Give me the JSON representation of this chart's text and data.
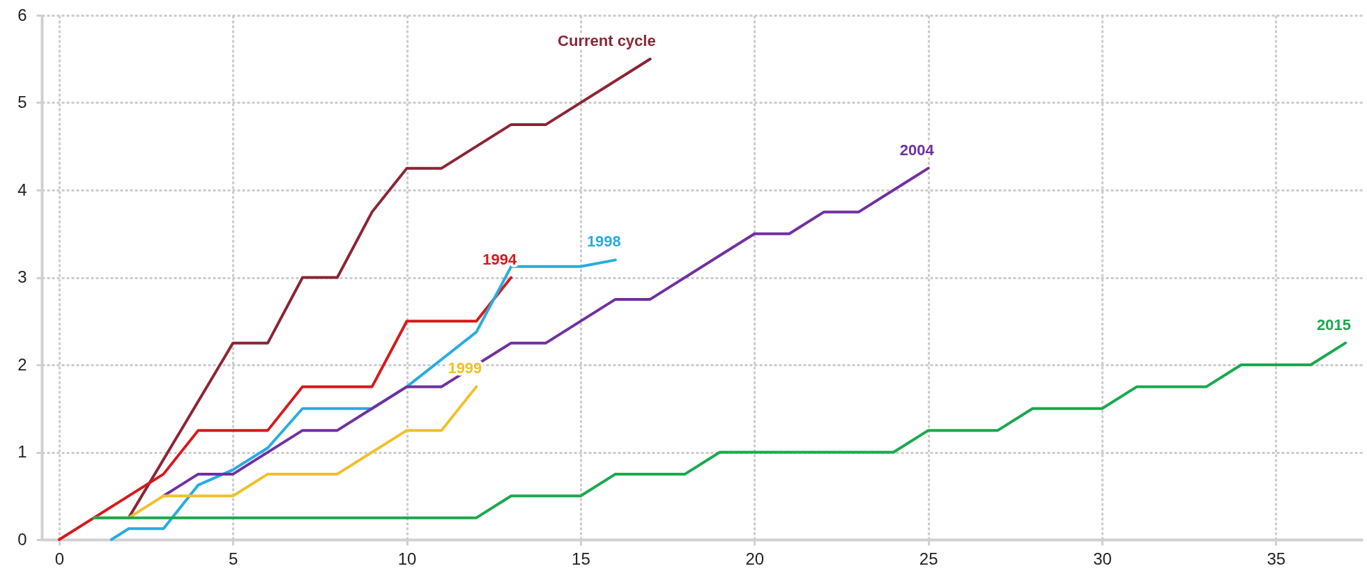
{
  "chart_data": {
    "type": "line",
    "xlim": [
      -0.5,
      37.5
    ],
    "xticks": [
      0,
      5,
      10,
      15,
      20,
      25,
      30,
      35
    ],
    "ylim": [
      0,
      6
    ],
    "yticks": [
      0,
      1,
      2,
      3,
      4,
      5,
      6
    ],
    "grid": true,
    "legend": false,
    "marker": "none",
    "line_style": "solid",
    "series": [
      {
        "name": "Current cycle",
        "color": "#8b2535",
        "x": [
          2,
          5,
          6,
          7,
          8,
          9,
          10,
          11,
          13,
          14,
          17
        ],
        "values": [
          0.25,
          2.25,
          2.25,
          3,
          3,
          3.75,
          4.25,
          4.25,
          4.75,
          4.75,
          5.5
        ]
      },
      {
        "name": "1994",
        "color": "#d7191c",
        "x": [
          0,
          3,
          4,
          6,
          7,
          9,
          10,
          12,
          13
        ],
        "values": [
          0,
          0.75,
          1.25,
          1.25,
          1.75,
          1.75,
          2.5,
          2.5,
          3
        ]
      },
      {
        "name": "1998",
        "color": "#29abe2",
        "x": [
          1.5,
          2,
          3,
          4,
          5,
          6,
          7,
          9,
          10,
          12,
          13,
          15,
          16
        ],
        "values": [
          0,
          0.125,
          0.125,
          0.625,
          0.8,
          1.05,
          1.5,
          1.5,
          1.75,
          2.375,
          3.125,
          3.125,
          3.2
        ]
      },
      {
        "name": "2004",
        "color": "#7030a0",
        "x": [
          3,
          4,
          5,
          7,
          8,
          10,
          11,
          13,
          14,
          16,
          17,
          20,
          21,
          22,
          23,
          25
        ],
        "values": [
          0.5,
          0.75,
          0.75,
          1.25,
          1.25,
          1.75,
          1.75,
          2.25,
          2.25,
          2.75,
          2.75,
          3.5,
          3.5,
          3.75,
          3.75,
          4.25
        ]
      },
      {
        "name": "1999",
        "color": "#f0c02a",
        "x": [
          1,
          2,
          3,
          5,
          6,
          8,
          10,
          11,
          12
        ],
        "values": [
          0.25,
          0.25,
          0.5,
          0.5,
          0.75,
          0.75,
          1.25,
          1.25,
          1.75
        ]
      },
      {
        "name": "2015",
        "color": "#1aa84f",
        "x": [
          1,
          12,
          13,
          15,
          16,
          18,
          19,
          24,
          25,
          27,
          28,
          30,
          31,
          33,
          34,
          36,
          37
        ],
        "values": [
          0.25,
          0.25,
          0.5,
          0.5,
          0.75,
          0.75,
          1,
          1,
          1.25,
          1.25,
          1.5,
          1.5,
          1.75,
          1.75,
          2,
          2,
          2.25
        ]
      }
    ]
  }
}
